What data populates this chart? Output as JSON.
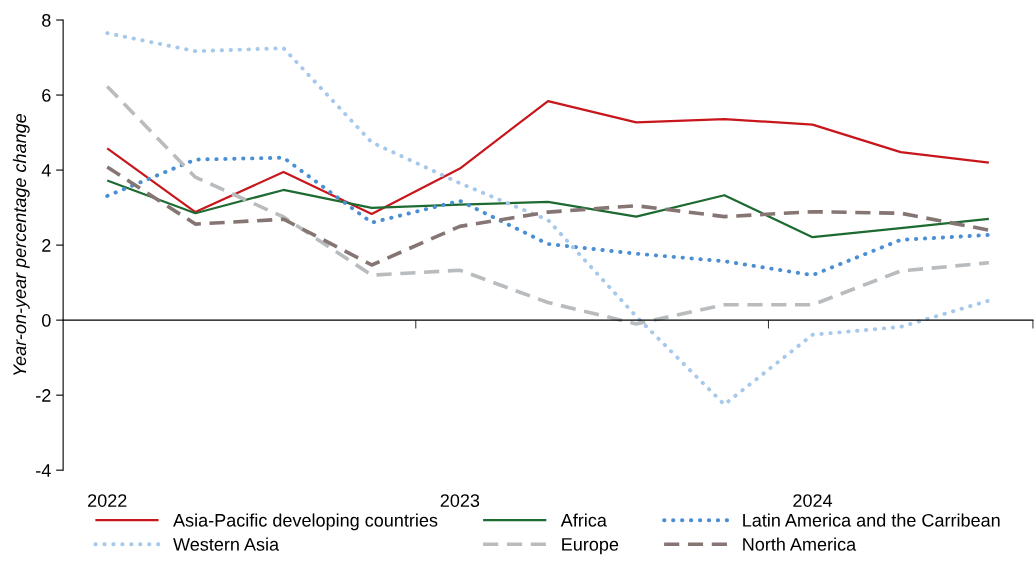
{
  "chart_data": {
    "type": "line",
    "ylabel": "Year-on-year percentage change",
    "categories": [
      "2022",
      null,
      null,
      null,
      "2023",
      null,
      null,
      null,
      "2024",
      null,
      null
    ],
    "ylim": [
      -4,
      8
    ],
    "yticks": [
      -4,
      -2,
      0,
      2,
      4,
      6,
      8
    ],
    "legend": "bottom",
    "series": [
      {
        "name": "Asia-Pacific developing countries",
        "color": "#c8161d",
        "line_style": "solid",
        "values": [
          4.58,
          2.88,
          3.95,
          2.83,
          4.04,
          5.84,
          5.27,
          5.36,
          5.21,
          4.48,
          4.2
        ]
      },
      {
        "name": "Africa",
        "color": "#1e6b32",
        "line_style": "solid",
        "values": [
          3.72,
          2.85,
          3.47,
          2.99,
          3.08,
          3.15,
          2.76,
          3.33,
          2.21,
          2.45,
          2.7
        ]
      },
      {
        "name": "Latin America and the Carribean",
        "color": "#4a8fd4",
        "line_style": "dotted",
        "values": [
          3.31,
          4.28,
          4.33,
          2.6,
          3.18,
          2.03,
          1.77,
          1.57,
          1.2,
          2.14,
          2.27
        ]
      },
      {
        "name": "Western Asia",
        "color": "#a6c8ea",
        "line_style": "dotted",
        "values": [
          7.65,
          7.17,
          7.25,
          4.74,
          3.65,
          2.67,
          0.1,
          -2.25,
          -0.39,
          -0.18,
          0.52
        ]
      },
      {
        "name": "Europe",
        "color": "#b8bcbf",
        "line_style": "dashed",
        "values": [
          6.23,
          3.81,
          2.75,
          1.2,
          1.33,
          0.47,
          -0.1,
          0.41,
          0.41,
          1.31,
          1.53
        ]
      },
      {
        "name": "North America",
        "color": "#857674",
        "line_style": "dashed",
        "values": [
          4.08,
          2.56,
          2.69,
          1.47,
          2.5,
          2.88,
          3.05,
          2.76,
          2.89,
          2.85,
          2.4
        ]
      }
    ]
  }
}
